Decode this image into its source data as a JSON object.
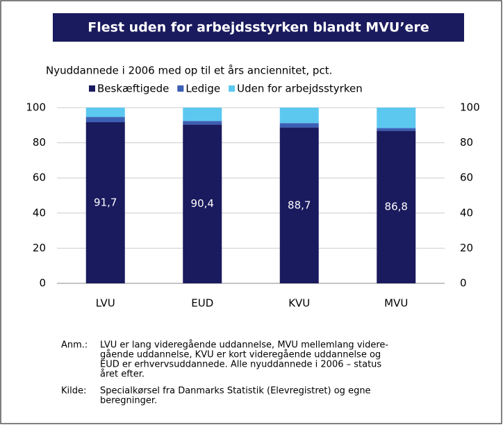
{
  "chart_data": {
    "type": "stacked_bar",
    "title": "Flest uden for arbejdsstyrken blandt MVU’ere",
    "subtitle": "Nyuddannede i 2006 med op til et års anciennitet, pct.",
    "categories": [
      "LVU",
      "EUD",
      "KVU",
      "MVU"
    ],
    "series": [
      {
        "name": "Beskæftigede",
        "color": "#1a1a5e",
        "values": [
          91.7,
          90.4,
          88.7,
          86.8
        ],
        "value_labels": [
          "91,7",
          "90,4",
          "88,7",
          "86,8"
        ]
      },
      {
        "name": "Ledige",
        "color": "#3c5fb4",
        "values": [
          3.0,
          2.0,
          2.5,
          1.6
        ]
      },
      {
        "name": "Uden for arbejdsstyrken",
        "color": "#5cc8f0",
        "values": [
          5.3,
          7.6,
          8.8,
          11.6
        ]
      }
    ],
    "ylim": [
      0,
      100
    ],
    "yticks": [
      0,
      20,
      40,
      60,
      80,
      100
    ],
    "grid": true,
    "legend": "top",
    "notes": [
      {
        "label": "Anm.:",
        "lines": [
          "LVU er lang videregående uddannelse, MVU mellemlang videre-",
          "gående uddannelse, KVU er kort videregående uddannelse og",
          "EUD er erhvervsuddannede. Alle nyuddannede i 2006 – status",
          "året efter."
        ]
      },
      {
        "label": "Kilde:",
        "lines": [
          "Specialkørsel fra Danmarks Statistik (Elevregistret) og egne",
          "beregninger."
        ]
      }
    ]
  }
}
